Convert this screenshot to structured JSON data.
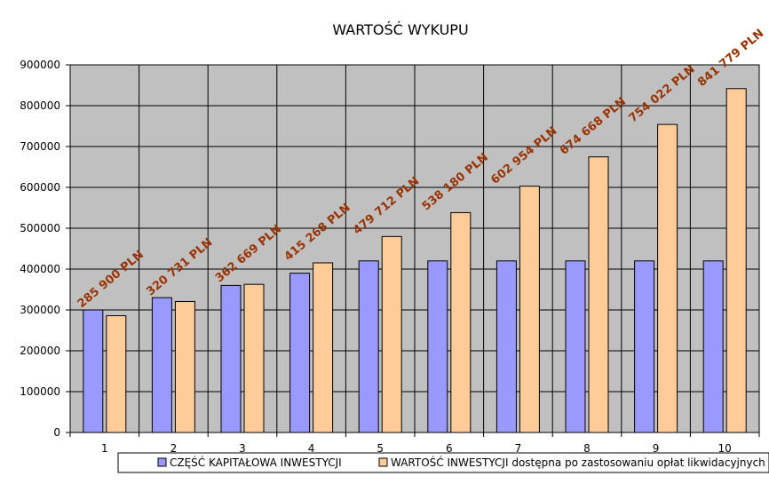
{
  "chart_data": {
    "type": "bar",
    "title": "WARTOŚĆ WYKUPU",
    "xlabel": "",
    "ylabel": "",
    "categories": [
      "1",
      "2",
      "3",
      "4",
      "5",
      "6",
      "7",
      "8",
      "9",
      "10"
    ],
    "ylim": [
      0,
      900000
    ],
    "yticks": [
      "0",
      "100000",
      "200000",
      "300000",
      "400000",
      "500000",
      "600000",
      "700000",
      "800000",
      "900000"
    ],
    "grid": true,
    "legend_position": "bottom",
    "colors": {
      "plot_background": "#c0c0c0",
      "data_label": "#993300"
    },
    "series": [
      {
        "name": "CZĘŚĆ KAPITAŁOWA INWESTYCJI",
        "color": "#9999ff",
        "values": [
          300000,
          330000,
          360000,
          390000,
          420000,
          420000,
          420000,
          420000,
          420000,
          420000
        ]
      },
      {
        "name": "WARTOŚĆ INWESTYCJI dostępna po zastosowaniu opłat likwidacyjnych",
        "color": "#ffcc99",
        "values": [
          285900,
          320731,
          362669,
          415268,
          479712,
          538180,
          602954,
          674668,
          754022,
          841779
        ],
        "data_labels": [
          "285 900 PLN",
          "320 731 PLN",
          "362 669 PLN",
          "415 268 PLN",
          "479 712 PLN",
          "538 180 PLN",
          "602 954 PLN",
          "674 668 PLN",
          "754 022 PLN",
          "841 779 PLN"
        ]
      }
    ]
  }
}
